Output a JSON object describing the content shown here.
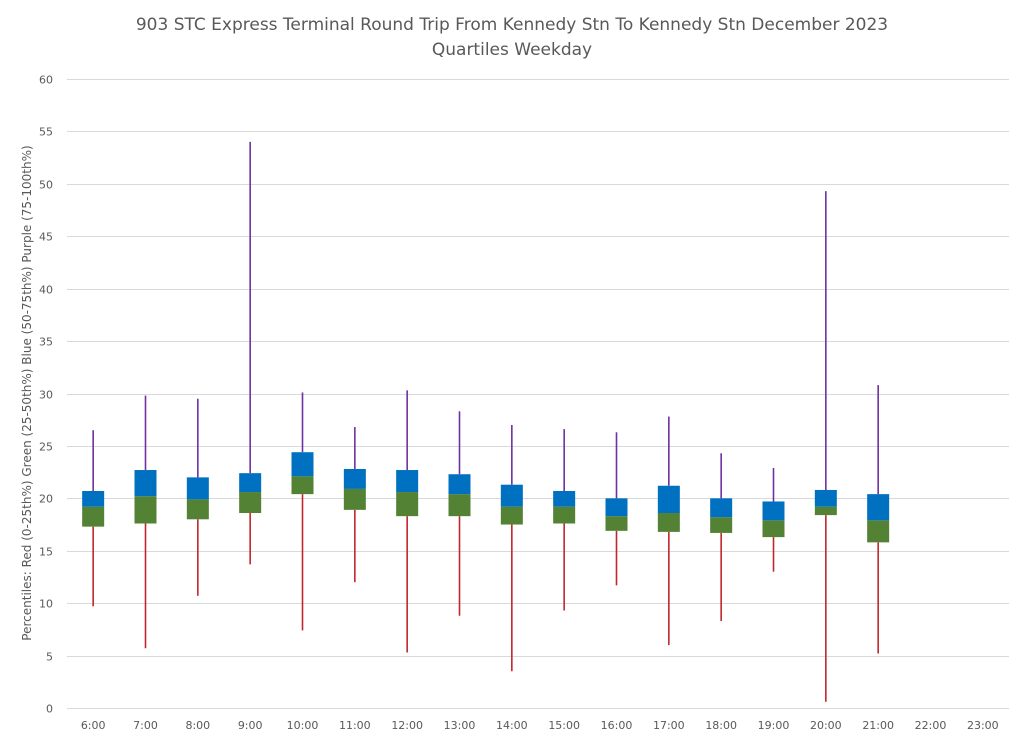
{
  "chart_data": {
    "type": "box",
    "title": "903 STC Express Terminal Round Trip From Kennedy Stn To Kennedy Stn December 2023",
    "subtitle": "Quartiles Weekday",
    "ylabel": "Percentiles:  Red (0-25th%)  Green (25-50th%)  Blue (50-75th%)  Purple (75-100th%)",
    "xlabel": "",
    "ylim": [
      0,
      60
    ],
    "yticks": [
      0,
      5,
      10,
      15,
      20,
      25,
      30,
      35,
      40,
      45,
      50,
      55,
      60
    ],
    "grid": true,
    "categories": [
      "6:00",
      "7:00",
      "8:00",
      "9:00",
      "10:00",
      "11:00",
      "12:00",
      "13:00",
      "14:00",
      "15:00",
      "16:00",
      "17:00",
      "18:00",
      "19:00",
      "20:00",
      "21:00",
      "22:00",
      "23:00"
    ],
    "series": [
      {
        "name": "Min (0th%)",
        "values": [
          9.7,
          5.7,
          10.7,
          13.7,
          7.4,
          12.0,
          5.3,
          8.8,
          3.5,
          9.3,
          11.7,
          6.0,
          8.3,
          13.0,
          0.6,
          5.2,
          null,
          null
        ]
      },
      {
        "name": "25th%",
        "values": [
          17.3,
          17.6,
          18.0,
          18.6,
          20.4,
          18.9,
          18.3,
          18.3,
          17.5,
          17.6,
          16.9,
          16.8,
          16.7,
          16.3,
          18.4,
          15.8,
          null,
          null
        ]
      },
      {
        "name": "50th%",
        "values": [
          19.2,
          20.2,
          19.9,
          20.6,
          22.1,
          20.9,
          20.6,
          20.4,
          19.2,
          19.2,
          18.3,
          18.6,
          18.2,
          17.9,
          19.2,
          17.9,
          null,
          null
        ]
      },
      {
        "name": "75th%",
        "values": [
          20.7,
          22.7,
          22.0,
          22.4,
          24.4,
          22.8,
          22.7,
          22.3,
          21.3,
          20.7,
          20.0,
          21.2,
          20.0,
          19.7,
          20.8,
          20.4,
          null,
          null
        ]
      },
      {
        "name": "Max (100th%)",
        "values": [
          26.5,
          29.8,
          29.5,
          54.0,
          30.1,
          26.8,
          30.3,
          28.3,
          27.0,
          26.6,
          26.3,
          27.8,
          24.3,
          22.9,
          49.3,
          30.8,
          null,
          null
        ]
      }
    ],
    "colors": {
      "lower_whisker": "#C0272D",
      "lower_box": "#548235",
      "upper_box": "#0070C0",
      "upper_whisker": "#7030A0"
    }
  }
}
